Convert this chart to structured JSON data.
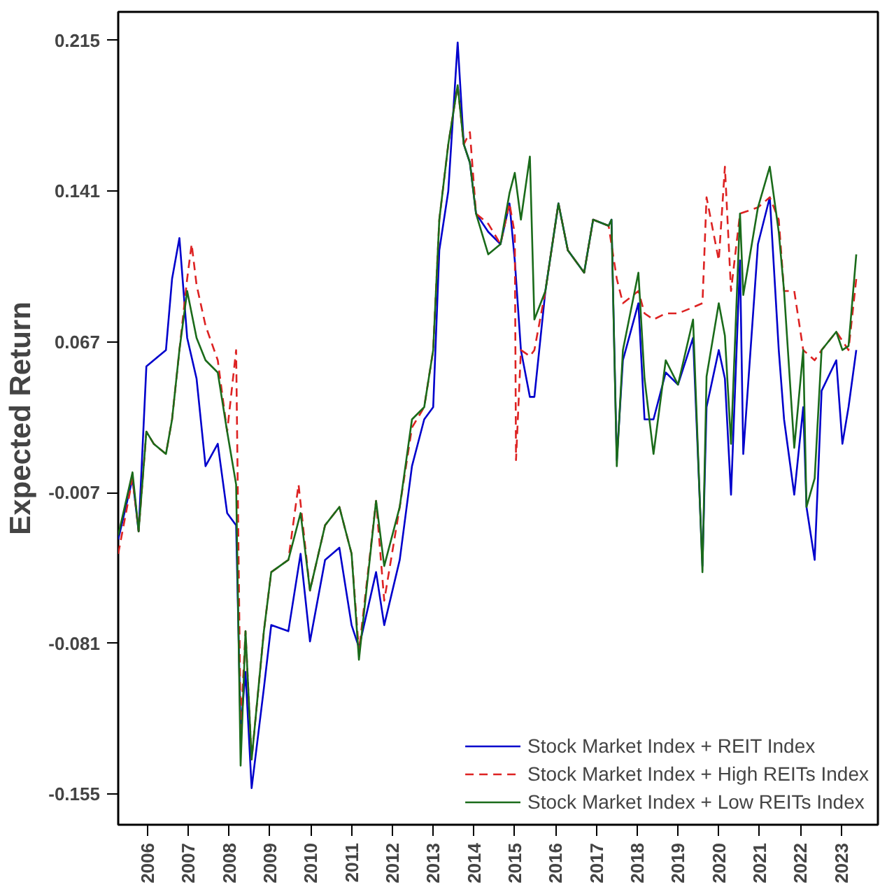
{
  "chart_data": {
    "type": "line",
    "ylabel": "Expected Return",
    "xlim": [
      2005.28,
      2023.9
    ],
    "xticks": [
      2006,
      2007,
      2008,
      2009,
      2010,
      2011,
      2012,
      2013,
      2014,
      2015,
      2016,
      2017,
      2018,
      2019,
      2020,
      2021,
      2022,
      2023
    ],
    "ylim": [
      -0.17,
      0.229
    ],
    "yticks": [
      -0.155,
      -0.081,
      -0.007,
      0.067,
      0.141,
      0.215
    ],
    "grid": false,
    "legend": "bottom right",
    "series": [
      {
        "name": "Stock Market Index + REIT Index",
        "color": "#0000cc",
        "line_style": "solid",
        "x": [
          2005.28,
          2005.63,
          2005.78,
          2005.97,
          2006.15,
          2006.45,
          2006.6,
          2006.78,
          2006.97,
          2007.2,
          2007.42,
          2007.72,
          2007.95,
          2008.17,
          2008.28,
          2008.4,
          2008.55,
          2008.85,
          2009.03,
          2009.45,
          2009.75,
          2009.98,
          2010.35,
          2010.7,
          2011.0,
          2011.18,
          2011.6,
          2011.8,
          2012.18,
          2012.48,
          2012.78,
          2013.0,
          2013.15,
          2013.37,
          2013.6,
          2013.75,
          2013.9,
          2014.05,
          2014.35,
          2014.65,
          2014.87,
          2015.0,
          2015.15,
          2015.37,
          2015.48,
          2015.75,
          2016.07,
          2016.3,
          2016.7,
          2016.92,
          2017.3,
          2017.37,
          2017.5,
          2017.65,
          2018.03,
          2018.18,
          2018.4,
          2018.7,
          2019.0,
          2019.37,
          2019.6,
          2019.7,
          2020.0,
          2020.15,
          2020.3,
          2020.52,
          2020.6,
          2020.96,
          2021.25,
          2021.47,
          2021.6,
          2021.85,
          2022.07,
          2022.15,
          2022.35,
          2022.52,
          2022.88,
          2023.03,
          2023.18,
          2023.37
        ],
        "values": [
          -0.03,
          0.0,
          -0.026,
          0.055,
          0.058,
          0.063,
          0.098,
          0.118,
          0.069,
          0.049,
          0.006,
          0.017,
          -0.017,
          -0.023,
          -0.123,
          -0.095,
          -0.152,
          -0.103,
          -0.072,
          -0.075,
          -0.037,
          -0.08,
          -0.04,
          -0.034,
          -0.072,
          -0.083,
          -0.046,
          -0.072,
          -0.04,
          0.006,
          0.029,
          0.035,
          0.112,
          0.141,
          0.214,
          0.164,
          0.155,
          0.13,
          0.121,
          0.115,
          0.135,
          0.107,
          0.063,
          0.04,
          0.04,
          0.092,
          0.135,
          0.112,
          0.101,
          0.127,
          0.124,
          0.127,
          0.009,
          0.058,
          0.086,
          0.029,
          0.029,
          0.052,
          0.046,
          0.069,
          -0.043,
          0.035,
          0.063,
          0.049,
          -0.008,
          0.107,
          0.012,
          0.115,
          0.138,
          0.063,
          0.029,
          -0.008,
          0.035,
          -0.014,
          -0.04,
          0.043,
          0.058,
          0.017,
          0.035,
          0.063
        ]
      },
      {
        "name": "Stock Market Index + High REITs Index",
        "color": "#dd2222",
        "line_style": "dashed",
        "x": [
          2005.28,
          2005.63,
          2005.78,
          2005.97,
          2006.15,
          2006.45,
          2006.6,
          2006.78,
          2006.97,
          2007.08,
          2007.2,
          2007.42,
          2007.72,
          2007.95,
          2008.17,
          2008.28,
          2008.4,
          2008.55,
          2008.85,
          2009.03,
          2009.45,
          2009.7,
          2009.98,
          2010.35,
          2010.7,
          2011.0,
          2011.18,
          2011.6,
          2011.8,
          2012.18,
          2012.48,
          2012.78,
          2013.0,
          2013.15,
          2013.37,
          2013.6,
          2013.75,
          2013.9,
          2014.05,
          2014.35,
          2014.65,
          2014.87,
          2015.0,
          2015.03,
          2015.15,
          2015.37,
          2015.48,
          2015.75,
          2016.07,
          2016.3,
          2016.7,
          2016.92,
          2017.3,
          2017.5,
          2017.65,
          2018.03,
          2018.18,
          2018.4,
          2018.7,
          2019.0,
          2019.37,
          2019.6,
          2019.7,
          2020.0,
          2020.15,
          2020.3,
          2020.52,
          2020.96,
          2021.25,
          2021.47,
          2021.6,
          2021.85,
          2022.07,
          2022.35,
          2022.52,
          2022.88,
          2023.18,
          2023.37
        ],
        "values": [
          -0.037,
          0.0,
          -0.026,
          0.023,
          0.017,
          0.012,
          0.029,
          0.063,
          0.098,
          0.115,
          0.095,
          0.075,
          0.058,
          0.023,
          0.063,
          -0.123,
          -0.075,
          -0.138,
          -0.075,
          -0.046,
          -0.04,
          -0.003,
          -0.055,
          -0.023,
          -0.014,
          -0.037,
          -0.085,
          -0.011,
          -0.06,
          -0.014,
          0.025,
          0.035,
          0.063,
          0.127,
          0.164,
          0.193,
          0.164,
          0.17,
          0.13,
          0.125,
          0.115,
          0.135,
          0.12,
          0.009,
          0.063,
          0.06,
          0.063,
          0.092,
          0.135,
          0.112,
          0.101,
          0.127,
          0.124,
          0.098,
          0.086,
          0.092,
          0.081,
          0.078,
          0.081,
          0.081,
          0.084,
          0.086,
          0.138,
          0.107,
          0.153,
          0.092,
          0.13,
          0.133,
          0.138,
          0.127,
          0.092,
          0.092,
          0.063,
          0.058,
          0.063,
          0.072,
          0.063,
          0.098
        ]
      },
      {
        "name": "Stock Market Index + Low REITs Index",
        "color": "#1a6b1a",
        "line_style": "solid",
        "x": [
          2005.28,
          2005.63,
          2005.78,
          2005.97,
          2006.15,
          2006.45,
          2006.6,
          2006.78,
          2006.97,
          2007.2,
          2007.42,
          2007.72,
          2007.95,
          2008.17,
          2008.28,
          2008.4,
          2008.55,
          2008.85,
          2009.03,
          2009.45,
          2009.75,
          2009.98,
          2010.35,
          2010.7,
          2011.0,
          2011.18,
          2011.6,
          2011.8,
          2012.18,
          2012.48,
          2012.78,
          2013.0,
          2013.15,
          2013.37,
          2013.6,
          2013.75,
          2013.9,
          2014.05,
          2014.35,
          2014.65,
          2014.87,
          2015.0,
          2015.15,
          2015.37,
          2015.48,
          2015.75,
          2016.07,
          2016.3,
          2016.7,
          2016.92,
          2017.3,
          2017.37,
          2017.5,
          2017.65,
          2018.03,
          2018.18,
          2018.4,
          2018.7,
          2019.0,
          2019.37,
          2019.6,
          2019.7,
          2020.0,
          2020.15,
          2020.3,
          2020.52,
          2020.6,
          2020.96,
          2021.25,
          2021.47,
          2021.6,
          2021.85,
          2022.07,
          2022.15,
          2022.35,
          2022.52,
          2022.88,
          2023.03,
          2023.18,
          2023.37
        ],
        "values": [
          -0.028,
          0.003,
          -0.026,
          0.023,
          0.017,
          0.012,
          0.029,
          0.063,
          0.092,
          0.069,
          0.058,
          0.052,
          0.023,
          -0.003,
          -0.141,
          -0.075,
          -0.138,
          -0.075,
          -0.046,
          -0.04,
          -0.017,
          -0.055,
          -0.023,
          -0.014,
          -0.037,
          -0.089,
          -0.011,
          -0.043,
          -0.014,
          0.029,
          0.035,
          0.063,
          0.127,
          0.164,
          0.193,
          0.164,
          0.155,
          0.13,
          0.11,
          0.115,
          0.14,
          0.15,
          0.127,
          0.158,
          0.078,
          0.092,
          0.135,
          0.112,
          0.101,
          0.127,
          0.124,
          0.127,
          0.006,
          0.063,
          0.101,
          0.049,
          0.012,
          0.058,
          0.046,
          0.078,
          -0.046,
          0.05,
          0.086,
          0.07,
          0.017,
          0.13,
          0.09,
          0.133,
          0.153,
          0.121,
          0.092,
          0.015,
          0.063,
          -0.014,
          0.0,
          0.063,
          0.072,
          0.063,
          0.065,
          0.11
        ]
      }
    ]
  }
}
